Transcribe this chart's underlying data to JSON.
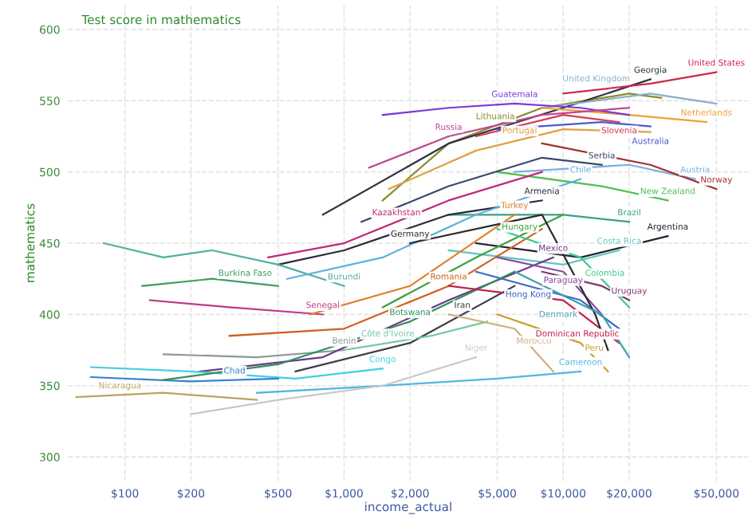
{
  "chart_data": {
    "type": "line",
    "title": "Test score in mathematics",
    "xlabel": "income_actual",
    "ylabel": "mathematics",
    "log": "x",
    "grid": true,
    "legend": false,
    "marker": "none",
    "line_style": "solid",
    "xlim": [
      55,
      70000
    ],
    "ylim": [
      283,
      617
    ],
    "xticks": [
      {
        "value": 100,
        "label": "$100"
      },
      {
        "value": 200,
        "label": "$200"
      },
      {
        "value": 500,
        "label": "$500"
      },
      {
        "value": 1000,
        "label": "$1,000"
      },
      {
        "value": 2000,
        "label": "$2,000"
      },
      {
        "value": 5000,
        "label": "$5,000"
      },
      {
        "value": 10000,
        "label": "$10,000"
      },
      {
        "value": 20000,
        "label": "$20,000"
      },
      {
        "value": 50000,
        "label": "$50,000"
      }
    ],
    "yticks": [
      300,
      350,
      400,
      450,
      500,
      550,
      600
    ],
    "series": [
      {
        "name": "Lithuania",
        "color": "#8a8a2a",
        "x": [
          1500,
          3000,
          8000,
          20000,
          28000
        ],
        "values": [
          480,
          520,
          545,
          555,
          552
        ]
      },
      {
        "name": "Georgia",
        "color": "#333344",
        "x": [
          800,
          3000,
          10000,
          25000
        ],
        "values": [
          470,
          520,
          545,
          565
        ]
      },
      {
        "name": "United States",
        "color": "#d0264a",
        "x": [
          10000,
          25000,
          50000
        ],
        "values": [
          555,
          562,
          570
        ]
      },
      {
        "name": "United Kingdom",
        "color": "#8ab0c8",
        "x": [
          8000,
          25000,
          50000
        ],
        "values": [
          545,
          555,
          548
        ]
      },
      {
        "name": "Netherlands",
        "color": "#f0a030",
        "x": [
          8000,
          20000,
          45000
        ],
        "values": [
          545,
          540,
          535
        ]
      },
      {
        "name": "Slovenia",
        "color": "#d83a5a",
        "x": [
          4000,
          10000,
          18000
        ],
        "values": [
          525,
          540,
          535
        ]
      },
      {
        "name": "Australia",
        "color": "#4a5ac8",
        "x": [
          5000,
          15000,
          25000
        ],
        "values": [
          530,
          535,
          532
        ]
      },
      {
        "name": "Guatemala",
        "color": "#7a3ad8",
        "x": [
          1500,
          3000,
          6000,
          12000,
          20000
        ],
        "values": [
          540,
          545,
          548,
          545,
          540
        ]
      },
      {
        "name": "Russia",
        "color": "#c04890",
        "x": [
          1300,
          3000,
          8000,
          20000
        ],
        "values": [
          503,
          525,
          540,
          545
        ]
      },
      {
        "name": "Portugal",
        "color": "#e0a040",
        "x": [
          1600,
          4000,
          10000,
          25000
        ],
        "values": [
          488,
          515,
          530,
          528
        ]
      },
      {
        "name": "Austria",
        "color": "#7aaee0",
        "x": [
          6000,
          20000,
          40000
        ],
        "values": [
          500,
          505,
          495
        ]
      },
      {
        "name": "Norway",
        "color": "#a0302a",
        "x": [
          8000,
          25000,
          50000
        ],
        "values": [
          520,
          505,
          488
        ]
      },
      {
        "name": "New Zealand",
        "color": "#50c050",
        "x": [
          5000,
          15000,
          30000
        ],
        "values": [
          500,
          490,
          480
        ]
      },
      {
        "name": "Serbia",
        "color": "#3a4a6a",
        "x": [
          1200,
          3000,
          8000,
          15000
        ],
        "values": [
          465,
          490,
          510,
          505
        ]
      },
      {
        "name": "Brazil",
        "color": "#3aa088",
        "x": [
          3000,
          10000,
          20000
        ],
        "values": [
          470,
          470,
          465
        ]
      },
      {
        "name": "Argentina",
        "color": "#222233",
        "x": [
          4000,
          12000,
          30000
        ],
        "values": [
          450,
          440,
          455
        ]
      },
      {
        "name": "Costa Rica",
        "color": "#60c8c0",
        "x": [
          3000,
          10000,
          18000
        ],
        "values": [
          445,
          435,
          445
        ]
      },
      {
        "name": "Kazakhstan",
        "color": "#c02a7a",
        "x": [
          450,
          1000,
          3000,
          8000
        ],
        "values": [
          440,
          450,
          480,
          500
        ]
      },
      {
        "name": "Armenia",
        "color": "#2a2a3a",
        "x": [
          500,
          1000,
          3000,
          8000
        ],
        "values": [
          435,
          445,
          470,
          480
        ]
      },
      {
        "name": "Burundi",
        "color": "#50b0a0",
        "x": [
          80,
          150,
          250,
          500,
          1000
        ],
        "values": [
          450,
          440,
          445,
          435,
          420
        ]
      },
      {
        "name": "Burkina Faso",
        "color": "#40a060",
        "x": [
          120,
          250,
          500
        ],
        "values": [
          420,
          425,
          420
        ]
      },
      {
        "name": "Senegal",
        "color": "#c03a80",
        "x": [
          130,
          300,
          800
        ],
        "values": [
          410,
          405,
          400
        ]
      },
      {
        "name": "Chile",
        "color": "#5ab0e0",
        "x": [
          550,
          1500,
          4000,
          12000
        ],
        "values": [
          425,
          440,
          470,
          495
        ]
      },
      {
        "name": "Turkey",
        "color": "#e08030",
        "x": [
          700,
          2000,
          6000
        ],
        "values": [
          400,
          420,
          470
        ]
      },
      {
        "name": "Hungary",
        "color": "#40a040",
        "x": [
          1500,
          4000,
          10000
        ],
        "values": [
          405,
          440,
          470
        ]
      },
      {
        "name": "Romania",
        "color": "#d06020",
        "x": [
          300,
          1000,
          3000,
          8000
        ],
        "values": [
          385,
          390,
          420,
          460
        ]
      },
      {
        "name": "Benin",
        "color": "#8a9a9a",
        "x": [
          150,
          400,
          1000
        ],
        "values": [
          372,
          370,
          375
        ]
      },
      {
        "name": "Mexico",
        "color": "#6a3a8a",
        "x": [
          220,
          800,
          3000,
          9000
        ],
        "values": [
          360,
          370,
          410,
          440
        ]
      },
      {
        "name": "Iran",
        "color": "#3a3a4a",
        "x": [
          600,
          2000,
          6000
        ],
        "values": [
          360,
          380,
          420
        ]
      },
      {
        "name": "Congo",
        "color": "#40d0e0",
        "x": [
          70,
          200,
          600,
          1500
        ],
        "values": [
          363,
          360,
          355,
          362
        ]
      },
      {
        "name": "Chad",
        "color": "#3a80d0",
        "x": [
          70,
          200,
          500
        ],
        "values": [
          356,
          353,
          355
        ]
      },
      {
        "name": "Botswana",
        "color": "#30905a",
        "x": [
          150,
          500,
          2000,
          6000
        ],
        "values": [
          354,
          365,
          395,
          430
        ]
      },
      {
        "name": "Nicaragua",
        "color": "#c0a060",
        "x": [
          60,
          150,
          400
        ],
        "values": [
          342,
          345,
          340
        ]
      },
      {
        "name": "Cameroon",
        "color": "#50b8e0",
        "x": [
          400,
          1500,
          5000,
          12000
        ],
        "values": [
          345,
          350,
          355,
          360
        ]
      },
      {
        "name": "Niger",
        "color": "#c8c8c8",
        "x": [
          200,
          500,
          1500,
          4000
        ],
        "values": [
          330,
          340,
          350,
          370
        ]
      },
      {
        "name": "Côte d'Ivoire",
        "color": "#70c8a8",
        "x": [
          1000,
          2500,
          4500
        ],
        "values": [
          375,
          385,
          395
        ]
      },
      {
        "name": "Morocco",
        "color": "#d0b080",
        "x": [
          3000,
          6000,
          9000
        ],
        "values": [
          400,
          390,
          360
        ]
      },
      {
        "name": "Paraguay",
        "color": "#8a4aa0",
        "x": [
          5000,
          10000,
          15000
        ],
        "values": [
          440,
          430,
          400
        ]
      },
      {
        "name": "Uruguay",
        "color": "#7a3a6a",
        "x": [
          8000,
          15000,
          20000
        ],
        "values": [
          430,
          420,
          410
        ]
      },
      {
        "name": "Colombia",
        "color": "#40c890",
        "x": [
          5000,
          12000,
          20000
        ],
        "values": [
          460,
          440,
          405
        ]
      },
      {
        "name": "Hong Kong",
        "color": "#3a6ac8",
        "x": [
          4000,
          12000,
          18000
        ],
        "values": [
          430,
          410,
          390
        ]
      },
      {
        "name": "Dominican Republic",
        "color": "#c0204a",
        "x": [
          3000,
          10000,
          18000
        ],
        "values": [
          420,
          410,
          380
        ]
      },
      {
        "name": "Germany",
        "color": "#2a2a2a",
        "x": [
          2000,
          8000,
          14000,
          16000
        ],
        "values": [
          450,
          470,
          400,
          375
        ]
      },
      {
        "name": "Denmark",
        "color": "#40a0b0",
        "x": [
          6000,
          15000,
          20000
        ],
        "values": [
          430,
          400,
          370
        ]
      },
      {
        "name": "Peru",
        "color": "#c8a030",
        "x": [
          5000,
          12000,
          16000
        ],
        "values": [
          400,
          380,
          360
        ]
      }
    ]
  }
}
